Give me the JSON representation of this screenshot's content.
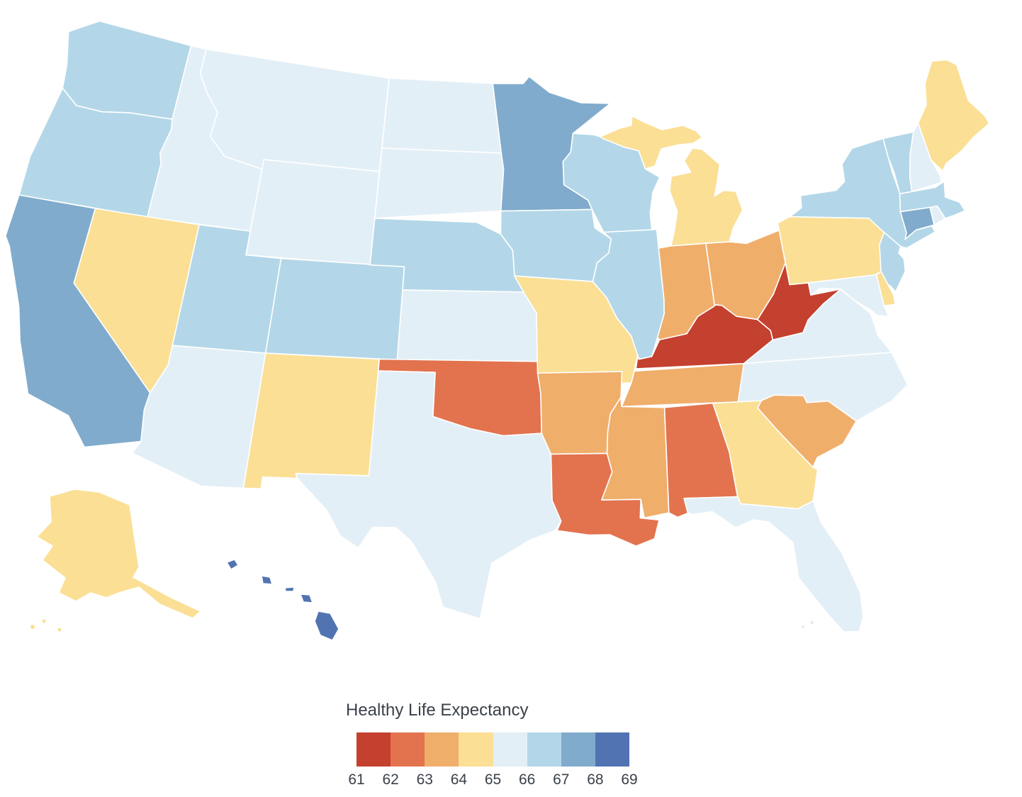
{
  "page": {
    "background": "#ffffff"
  },
  "legend": {
    "title": "Healthy Life Expectancy",
    "tick_labels": [
      "61",
      "62",
      "63",
      "64",
      "65",
      "66",
      "67",
      "68",
      "69"
    ],
    "bin_colors": [
      "#c4402f",
      "#e2734e",
      "#f0ae6b",
      "#fadf95",
      "#e3eff6",
      "#b3d7e8",
      "#80abcc",
      "#5173b1"
    ],
    "text_color": "#3a4149"
  },
  "map": {
    "border_color": "#ffffff",
    "border_width": 1.6,
    "ocean_color": "#ffffff"
  },
  "chart_data": {
    "type": "choropleth_map",
    "region": "United States (states, incl. Alaska and Hawaii insets)",
    "title": "Healthy Life Expectancy",
    "unit": "years",
    "value_domain": [
      61,
      69
    ],
    "bins": [
      {
        "range": "61-62",
        "color": "#c4402f"
      },
      {
        "range": "62-63",
        "color": "#e2734e"
      },
      {
        "range": "63-64",
        "color": "#f0ae6b"
      },
      {
        "range": "64-65",
        "color": "#fadf95"
      },
      {
        "range": "65-66",
        "color": "#e3eff6"
      },
      {
        "range": "66-67",
        "color": "#b3d7e8"
      },
      {
        "range": "67-68",
        "color": "#80abcc"
      },
      {
        "range": "68-69",
        "color": "#5173b1"
      }
    ],
    "states": [
      {
        "name": "Alabama",
        "abbr": "AL",
        "value": 62.5,
        "bin": "62-63"
      },
      {
        "name": "Alaska",
        "abbr": "AK",
        "value": 64.5,
        "bin": "64-65"
      },
      {
        "name": "Arizona",
        "abbr": "AZ",
        "value": 65.5,
        "bin": "65-66"
      },
      {
        "name": "Arkansas",
        "abbr": "AR",
        "value": 63.5,
        "bin": "63-64"
      },
      {
        "name": "California",
        "abbr": "CA",
        "value": 67.5,
        "bin": "67-68"
      },
      {
        "name": "Colorado",
        "abbr": "CO",
        "value": 66.5,
        "bin": "66-67"
      },
      {
        "name": "Connecticut",
        "abbr": "CT",
        "value": 67.5,
        "bin": "67-68"
      },
      {
        "name": "Delaware",
        "abbr": "DE",
        "value": 64.5,
        "bin": "64-65"
      },
      {
        "name": "Florida",
        "abbr": "FL",
        "value": 65.5,
        "bin": "65-66"
      },
      {
        "name": "Georgia",
        "abbr": "GA",
        "value": 64.5,
        "bin": "64-65"
      },
      {
        "name": "Hawaii",
        "abbr": "HI",
        "value": 68.5,
        "bin": "68-69"
      },
      {
        "name": "Idaho",
        "abbr": "ID",
        "value": 65.5,
        "bin": "65-66"
      },
      {
        "name": "Illinois",
        "abbr": "IL",
        "value": 66.5,
        "bin": "66-67"
      },
      {
        "name": "Indiana",
        "abbr": "IN",
        "value": 63.5,
        "bin": "63-64"
      },
      {
        "name": "Iowa",
        "abbr": "IA",
        "value": 66.5,
        "bin": "66-67"
      },
      {
        "name": "Kansas",
        "abbr": "KS",
        "value": 65.5,
        "bin": "65-66"
      },
      {
        "name": "Kentucky",
        "abbr": "KY",
        "value": 61.5,
        "bin": "61-62"
      },
      {
        "name": "Louisiana",
        "abbr": "LA",
        "value": 62.5,
        "bin": "62-63"
      },
      {
        "name": "Maine",
        "abbr": "ME",
        "value": 64.5,
        "bin": "64-65"
      },
      {
        "name": "Maryland",
        "abbr": "MD",
        "value": 65.5,
        "bin": "65-66"
      },
      {
        "name": "Massachusetts",
        "abbr": "MA",
        "value": 66.5,
        "bin": "66-67"
      },
      {
        "name": "Michigan",
        "abbr": "MI",
        "value": 64.5,
        "bin": "64-65"
      },
      {
        "name": "Minnesota",
        "abbr": "MN",
        "value": 67.5,
        "bin": "67-68"
      },
      {
        "name": "Mississippi",
        "abbr": "MS",
        "value": 63.5,
        "bin": "63-64"
      },
      {
        "name": "Missouri",
        "abbr": "MO",
        "value": 64.5,
        "bin": "64-65"
      },
      {
        "name": "Montana",
        "abbr": "MT",
        "value": 65.5,
        "bin": "65-66"
      },
      {
        "name": "Nebraska",
        "abbr": "NE",
        "value": 66.5,
        "bin": "66-67"
      },
      {
        "name": "Nevada",
        "abbr": "NV",
        "value": 64.5,
        "bin": "64-65"
      },
      {
        "name": "New Hampshire",
        "abbr": "NH",
        "value": 65.5,
        "bin": "65-66"
      },
      {
        "name": "New Jersey",
        "abbr": "NJ",
        "value": 66.5,
        "bin": "66-67"
      },
      {
        "name": "New Mexico",
        "abbr": "NM",
        "value": 64.5,
        "bin": "64-65"
      },
      {
        "name": "New York",
        "abbr": "NY",
        "value": 66.5,
        "bin": "66-67"
      },
      {
        "name": "North Carolina",
        "abbr": "NC",
        "value": 65.5,
        "bin": "65-66"
      },
      {
        "name": "North Dakota",
        "abbr": "ND",
        "value": 65.5,
        "bin": "65-66"
      },
      {
        "name": "Ohio",
        "abbr": "OH",
        "value": 63.5,
        "bin": "63-64"
      },
      {
        "name": "Oklahoma",
        "abbr": "OK",
        "value": 62.5,
        "bin": "62-63"
      },
      {
        "name": "Oregon",
        "abbr": "OR",
        "value": 66.5,
        "bin": "66-67"
      },
      {
        "name": "Pennsylvania",
        "abbr": "PA",
        "value": 64.5,
        "bin": "64-65"
      },
      {
        "name": "Rhode Island",
        "abbr": "RI",
        "value": 65.5,
        "bin": "65-66"
      },
      {
        "name": "South Carolina",
        "abbr": "SC",
        "value": 63.5,
        "bin": "63-64"
      },
      {
        "name": "South Dakota",
        "abbr": "SD",
        "value": 65.5,
        "bin": "65-66"
      },
      {
        "name": "Tennessee",
        "abbr": "TN",
        "value": 63.5,
        "bin": "63-64"
      },
      {
        "name": "Texas",
        "abbr": "TX",
        "value": 65.5,
        "bin": "65-66"
      },
      {
        "name": "Utah",
        "abbr": "UT",
        "value": 66.5,
        "bin": "66-67"
      },
      {
        "name": "Vermont",
        "abbr": "VT",
        "value": 66.5,
        "bin": "66-67"
      },
      {
        "name": "Virginia",
        "abbr": "VA",
        "value": 65.5,
        "bin": "65-66"
      },
      {
        "name": "Washington",
        "abbr": "WA",
        "value": 66.5,
        "bin": "66-67"
      },
      {
        "name": "West Virginia",
        "abbr": "WV",
        "value": 61.5,
        "bin": "61-62"
      },
      {
        "name": "Wisconsin",
        "abbr": "WI",
        "value": 66.5,
        "bin": "66-67"
      },
      {
        "name": "Wyoming",
        "abbr": "WY",
        "value": 65.5,
        "bin": "65-66"
      }
    ]
  }
}
